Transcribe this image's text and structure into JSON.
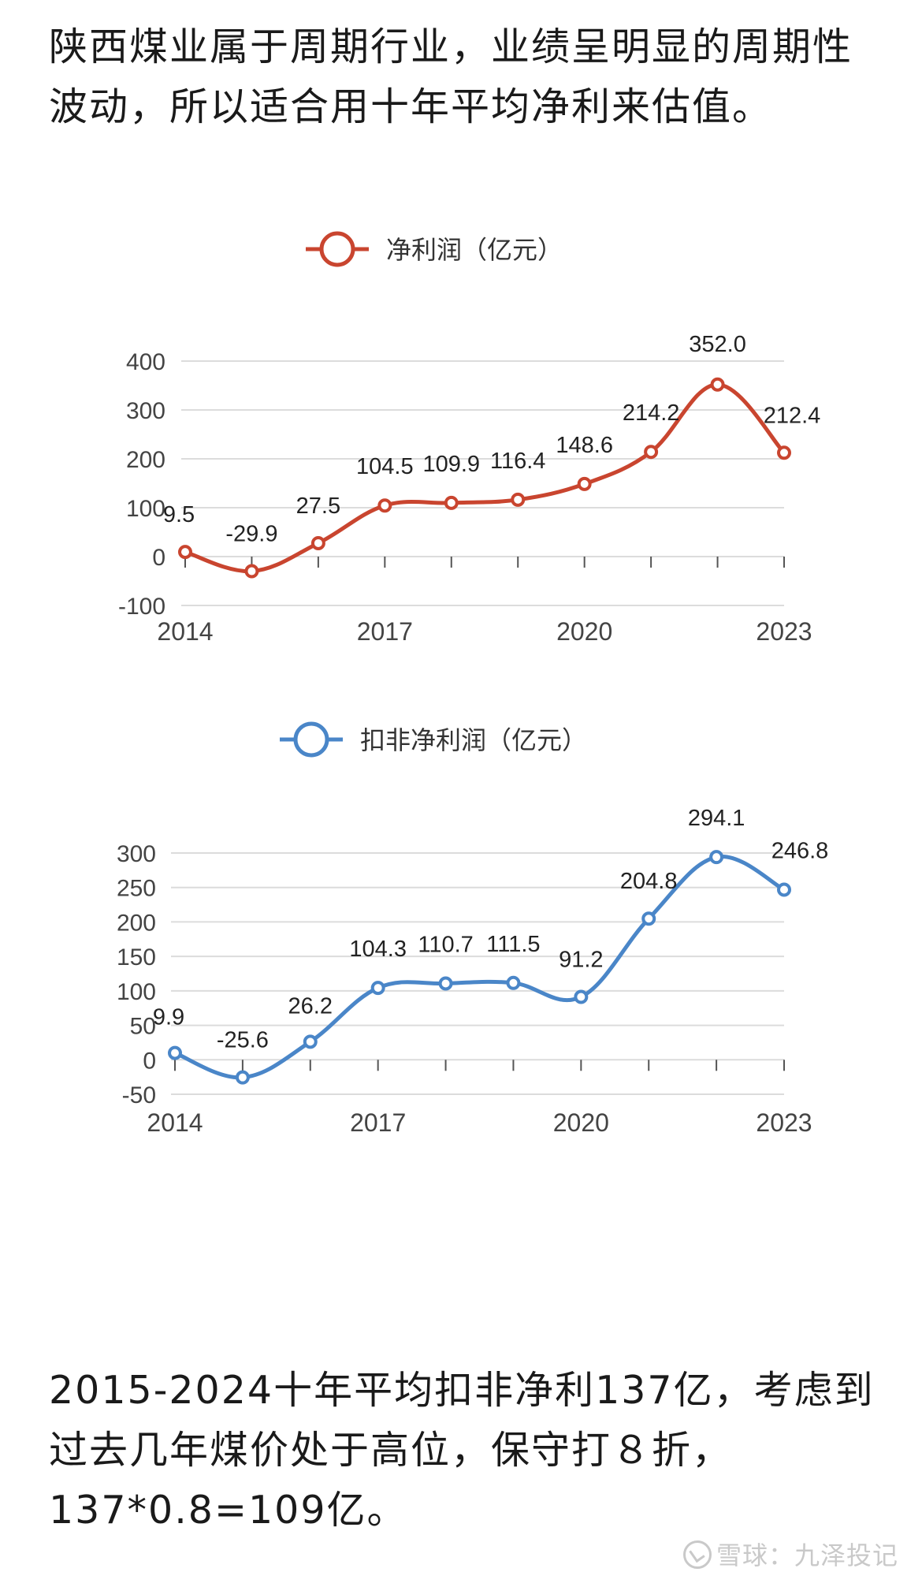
{
  "intro_text": "陕西煤业属于周期行业，业绩呈明显的周期性波动，所以适合用十年平均净利来估值。",
  "outro_text": "2015-2024十年平均扣非净利137亿，考虑到过去几年煤价处于高位，保守打８折，137*0.8=109亿。",
  "watermark": "雪球：九泽投记",
  "chart_data": [
    {
      "type": "line",
      "legend": "净利润（亿元）",
      "color": "#c9452f",
      "x": [
        2014,
        2015,
        2016,
        2017,
        2018,
        2019,
        2020,
        2021,
        2022,
        2023
      ],
      "values": [
        9.5,
        -29.9,
        27.5,
        104.5,
        109.9,
        116.4,
        148.6,
        214.2,
        352.0,
        212.4
      ],
      "labels": [
        "9.5",
        "-29.9",
        "27.5",
        "104.5",
        "109.9",
        "116.4",
        "148.6",
        "214.2",
        "352.0",
        "212.4"
      ],
      "xticks": [
        "2014",
        "2017",
        "2020",
        "2023"
      ],
      "yticks": [
        "400",
        "300",
        "200",
        "100",
        "0",
        "-100"
      ],
      "ylim": [
        -100,
        400
      ],
      "grid": true
    },
    {
      "type": "line",
      "legend": "扣非净利润（亿元）",
      "color": "#4a86c8",
      "x": [
        2014,
        2015,
        2016,
        2017,
        2018,
        2019,
        2020,
        2021,
        2022,
        2023
      ],
      "values": [
        9.9,
        -25.6,
        26.2,
        104.3,
        110.7,
        111.5,
        91.2,
        204.8,
        294.1,
        246.8
      ],
      "labels": [
        "9.9",
        "-25.6",
        "26.2",
        "104.3",
        "110.7",
        "111.5",
        "91.2",
        "204.8",
        "294.1",
        "246.8"
      ],
      "xticks": [
        "2014",
        "2017",
        "2020",
        "2023"
      ],
      "yticks": [
        "300",
        "250",
        "200",
        "150",
        "100",
        "50",
        "0",
        "-50"
      ],
      "ylim": [
        -50,
        300
      ],
      "grid": true
    }
  ]
}
